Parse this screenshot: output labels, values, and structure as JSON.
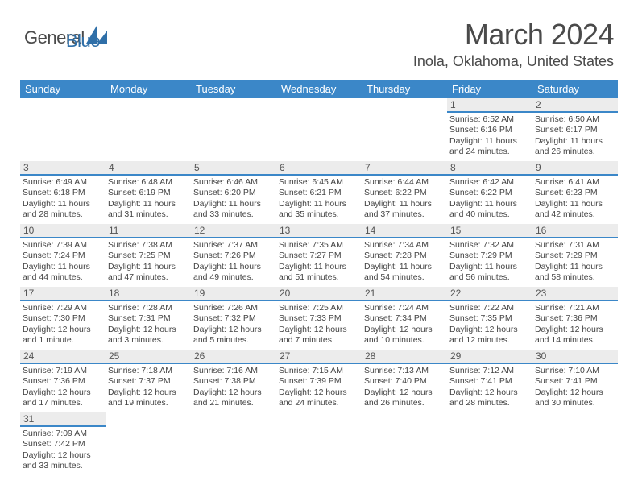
{
  "logo": {
    "general": "General",
    "blue": "Blue"
  },
  "title": "March 2024",
  "location": "Inola, Oklahoma, United States",
  "colors": {
    "header_bg": "#3b87c8",
    "header_text": "#ffffff",
    "daynum_bg": "#ececec",
    "daynum_border": "#3b87c8",
    "page_bg": "#ffffff",
    "text": "#4a4a4a"
  },
  "weekdays": [
    "Sunday",
    "Monday",
    "Tuesday",
    "Wednesday",
    "Thursday",
    "Friday",
    "Saturday"
  ],
  "weeks": [
    [
      null,
      null,
      null,
      null,
      null,
      {
        "n": "1",
        "sr": "6:52 AM",
        "ss": "6:16 PM",
        "dl": "11 hours and 24 minutes."
      },
      {
        "n": "2",
        "sr": "6:50 AM",
        "ss": "6:17 PM",
        "dl": "11 hours and 26 minutes."
      }
    ],
    [
      {
        "n": "3",
        "sr": "6:49 AM",
        "ss": "6:18 PM",
        "dl": "11 hours and 28 minutes."
      },
      {
        "n": "4",
        "sr": "6:48 AM",
        "ss": "6:19 PM",
        "dl": "11 hours and 31 minutes."
      },
      {
        "n": "5",
        "sr": "6:46 AM",
        "ss": "6:20 PM",
        "dl": "11 hours and 33 minutes."
      },
      {
        "n": "6",
        "sr": "6:45 AM",
        "ss": "6:21 PM",
        "dl": "11 hours and 35 minutes."
      },
      {
        "n": "7",
        "sr": "6:44 AM",
        "ss": "6:22 PM",
        "dl": "11 hours and 37 minutes."
      },
      {
        "n": "8",
        "sr": "6:42 AM",
        "ss": "6:22 PM",
        "dl": "11 hours and 40 minutes."
      },
      {
        "n": "9",
        "sr": "6:41 AM",
        "ss": "6:23 PM",
        "dl": "11 hours and 42 minutes."
      }
    ],
    [
      {
        "n": "10",
        "sr": "7:39 AM",
        "ss": "7:24 PM",
        "dl": "11 hours and 44 minutes."
      },
      {
        "n": "11",
        "sr": "7:38 AM",
        "ss": "7:25 PM",
        "dl": "11 hours and 47 minutes."
      },
      {
        "n": "12",
        "sr": "7:37 AM",
        "ss": "7:26 PM",
        "dl": "11 hours and 49 minutes."
      },
      {
        "n": "13",
        "sr": "7:35 AM",
        "ss": "7:27 PM",
        "dl": "11 hours and 51 minutes."
      },
      {
        "n": "14",
        "sr": "7:34 AM",
        "ss": "7:28 PM",
        "dl": "11 hours and 54 minutes."
      },
      {
        "n": "15",
        "sr": "7:32 AM",
        "ss": "7:29 PM",
        "dl": "11 hours and 56 minutes."
      },
      {
        "n": "16",
        "sr": "7:31 AM",
        "ss": "7:29 PM",
        "dl": "11 hours and 58 minutes."
      }
    ],
    [
      {
        "n": "17",
        "sr": "7:29 AM",
        "ss": "7:30 PM",
        "dl": "12 hours and 1 minute."
      },
      {
        "n": "18",
        "sr": "7:28 AM",
        "ss": "7:31 PM",
        "dl": "12 hours and 3 minutes."
      },
      {
        "n": "19",
        "sr": "7:26 AM",
        "ss": "7:32 PM",
        "dl": "12 hours and 5 minutes."
      },
      {
        "n": "20",
        "sr": "7:25 AM",
        "ss": "7:33 PM",
        "dl": "12 hours and 7 minutes."
      },
      {
        "n": "21",
        "sr": "7:24 AM",
        "ss": "7:34 PM",
        "dl": "12 hours and 10 minutes."
      },
      {
        "n": "22",
        "sr": "7:22 AM",
        "ss": "7:35 PM",
        "dl": "12 hours and 12 minutes."
      },
      {
        "n": "23",
        "sr": "7:21 AM",
        "ss": "7:36 PM",
        "dl": "12 hours and 14 minutes."
      }
    ],
    [
      {
        "n": "24",
        "sr": "7:19 AM",
        "ss": "7:36 PM",
        "dl": "12 hours and 17 minutes."
      },
      {
        "n": "25",
        "sr": "7:18 AM",
        "ss": "7:37 PM",
        "dl": "12 hours and 19 minutes."
      },
      {
        "n": "26",
        "sr": "7:16 AM",
        "ss": "7:38 PM",
        "dl": "12 hours and 21 minutes."
      },
      {
        "n": "27",
        "sr": "7:15 AM",
        "ss": "7:39 PM",
        "dl": "12 hours and 24 minutes."
      },
      {
        "n": "28",
        "sr": "7:13 AM",
        "ss": "7:40 PM",
        "dl": "12 hours and 26 minutes."
      },
      {
        "n": "29",
        "sr": "7:12 AM",
        "ss": "7:41 PM",
        "dl": "12 hours and 28 minutes."
      },
      {
        "n": "30",
        "sr": "7:10 AM",
        "ss": "7:41 PM",
        "dl": "12 hours and 30 minutes."
      }
    ],
    [
      {
        "n": "31",
        "sr": "7:09 AM",
        "ss": "7:42 PM",
        "dl": "12 hours and 33 minutes."
      },
      null,
      null,
      null,
      null,
      null,
      null
    ]
  ],
  "labels": {
    "sunrise": "Sunrise:",
    "sunset": "Sunset:",
    "daylight": "Daylight:"
  }
}
